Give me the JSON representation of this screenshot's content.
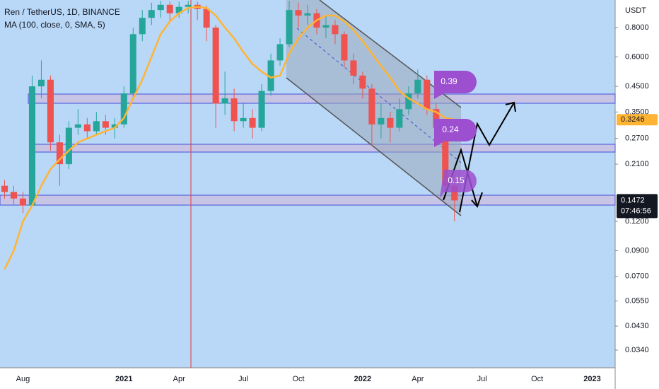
{
  "chart_data": {
    "type": "candlestick",
    "title": "Ren / TetherUS, 1D, BINANCE",
    "unit": "USDT",
    "log": true,
    "grid": false,
    "up_color": "#26a69a",
    "down_color": "#ef5350",
    "categories": [
      null,
      null,
      "Aug",
      null,
      null,
      null,
      null,
      null,
      null,
      null,
      null,
      null,
      null,
      "2021",
      null,
      null,
      null,
      null,
      null,
      "Apr",
      null,
      null,
      null,
      null,
      null,
      null,
      "Jul",
      null,
      null,
      null,
      null,
      null,
      "Oct",
      null,
      null,
      null,
      null,
      null,
      null,
      "2022",
      null,
      null,
      null,
      null,
      null,
      "Apr",
      null,
      null,
      null,
      null,
      null,
      null,
      "Jul",
      null,
      null,
      null,
      null,
      null,
      "Oct",
      null,
      null,
      null,
      null,
      null,
      "2023",
      null,
      null
    ],
    "open": [
      0.17,
      0.16,
      0.15,
      0.14,
      0.45,
      0.48,
      0.26,
      0.21,
      0.3,
      0.31,
      0.29,
      0.32,
      0.3,
      0.31,
      0.42,
      0.75,
      0.88,
      0.95,
      1.0,
      0.92,
      0.98,
      1.0,
      0.96,
      0.8,
      0.38,
      0.4,
      0.32,
      0.33,
      0.3,
      0.43,
      0.58,
      0.68,
      0.95,
      0.9,
      0.92,
      0.8,
      0.82,
      0.75,
      0.58,
      0.5,
      0.44,
      0.31,
      0.33,
      0.3,
      0.36,
      0.42,
      0.48,
      0.36,
      0.3,
      0.17,
      null,
      null,
      null,
      null,
      null,
      null,
      null,
      null,
      null,
      null,
      null,
      null,
      null,
      null,
      null,
      null,
      null
    ],
    "high": [
      0.18,
      0.17,
      0.16,
      0.5,
      0.58,
      0.5,
      0.28,
      0.32,
      0.36,
      0.33,
      0.35,
      0.34,
      0.33,
      0.45,
      0.8,
      0.95,
      1.02,
      1.04,
      1.03,
      1.03,
      1.04,
      1.03,
      0.99,
      0.82,
      0.52,
      0.44,
      0.38,
      0.36,
      0.46,
      0.62,
      0.72,
      1.04,
      1.02,
      1.0,
      0.96,
      0.9,
      0.86,
      0.77,
      0.62,
      0.52,
      0.46,
      0.38,
      0.35,
      0.4,
      0.45,
      0.53,
      0.5,
      0.38,
      0.31,
      0.19,
      null,
      null,
      null,
      null,
      null,
      null,
      null,
      null,
      null,
      null,
      null,
      null,
      null,
      null,
      null,
      null,
      null
    ],
    "low": [
      0.15,
      0.14,
      0.13,
      0.14,
      0.4,
      0.24,
      0.17,
      0.2,
      0.28,
      0.27,
      0.28,
      0.28,
      0.27,
      0.3,
      0.4,
      0.7,
      0.82,
      0.88,
      0.85,
      0.88,
      0.92,
      0.86,
      0.7,
      0.3,
      0.34,
      0.29,
      0.3,
      0.27,
      0.29,
      0.41,
      0.55,
      0.66,
      0.8,
      0.82,
      0.75,
      0.72,
      0.68,
      0.54,
      0.46,
      0.4,
      0.25,
      0.27,
      0.26,
      0.29,
      0.34,
      0.4,
      0.34,
      0.27,
      0.15,
      0.12,
      null,
      null,
      null,
      null,
      null,
      null,
      null,
      null,
      null,
      null,
      null,
      null,
      null,
      null,
      null,
      null,
      null
    ],
    "close": [
      0.16,
      0.15,
      0.14,
      0.45,
      0.48,
      0.26,
      0.21,
      0.3,
      0.31,
      0.29,
      0.32,
      0.3,
      0.31,
      0.42,
      0.75,
      0.88,
      0.95,
      1.0,
      0.92,
      0.98,
      1.0,
      0.96,
      0.8,
      0.38,
      0.4,
      0.32,
      0.33,
      0.3,
      0.43,
      0.58,
      0.68,
      0.95,
      0.9,
      0.92,
      0.8,
      0.82,
      0.75,
      0.58,
      0.5,
      0.44,
      0.31,
      0.33,
      0.3,
      0.36,
      0.42,
      0.48,
      0.36,
      0.3,
      0.17,
      0.1472,
      null,
      null,
      null,
      null,
      null,
      null,
      null,
      null,
      null,
      null,
      null,
      null,
      null,
      null,
      null,
      null,
      null
    ],
    "ma": {
      "name": "MA (100, close, 0, SMA, 5)",
      "color": "#ffb433",
      "values": [
        0.075,
        0.09,
        0.12,
        0.14,
        0.17,
        0.2,
        0.22,
        0.24,
        0.26,
        0.27,
        0.28,
        0.29,
        0.3,
        0.33,
        0.4,
        0.48,
        0.6,
        0.75,
        0.85,
        0.92,
        0.97,
        0.98,
        0.97,
        0.9,
        0.8,
        0.72,
        0.63,
        0.56,
        0.52,
        0.49,
        0.5,
        0.62,
        0.72,
        0.8,
        0.86,
        0.9,
        0.9,
        0.85,
        0.78,
        0.7,
        0.62,
        0.55,
        0.49,
        0.43,
        0.4,
        0.38,
        0.36,
        0.35,
        0.33,
        0.3246,
        null,
        null,
        null,
        null,
        null,
        null,
        null,
        null,
        null,
        null,
        null,
        null,
        null,
        null,
        null,
        null,
        null
      ]
    },
    "ylim": [
      0.0286,
      1.048
    ],
    "yticks": [
      {
        "value": 0.8,
        "label": "0.8000"
      },
      {
        "value": 0.6,
        "label": "0.6000"
      },
      {
        "value": 0.45,
        "label": "0.4500"
      },
      {
        "value": 0.35,
        "label": "0.3500"
      },
      {
        "value": 0.27,
        "label": "0.2700"
      },
      {
        "value": 0.21,
        "label": "0.2100"
      },
      {
        "value": 0.12,
        "label": "0.1200"
      },
      {
        "value": 0.09,
        "label": "0.0900"
      },
      {
        "value": 0.07,
        "label": "0.0700"
      },
      {
        "value": 0.055,
        "label": "0.0550"
      },
      {
        "value": 0.043,
        "label": "0.0430"
      },
      {
        "value": 0.034,
        "label": "0.0340"
      }
    ],
    "countdown": "07:46:56",
    "annotations": [
      "0.39",
      "0.24",
      "0.15"
    ]
  }
}
